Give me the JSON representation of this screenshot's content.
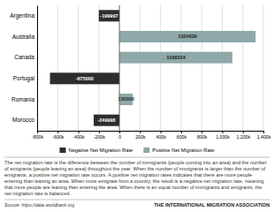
{
  "chart_data": {
    "type": "bar",
    "orientation": "horizontal",
    "title": "THE INTERNATIONAL MIGRATION ASSOCIATION",
    "annotations": [
      "The net migration rate is the difference between the number of immigrants (people coming into an area) and the number of emigrants (people leaving an area) throughout the year. When the number of immigrants is larger than the number of emigrants, a positive net migration rate occurs. A positive net migration rates indicates that there are more people entering than leaving an area. When more emigrate from a country, the result is a negative net migration rate, meaning that more people are leaving than entering the area. When there is an equal number of immigrants and emigrants, the net migration rate is balanced.",
      "Source: https://data.worldbank.org"
    ],
    "categories": [
      "Morocco",
      "Romania",
      "Portugal",
      "Canada",
      "Australia",
      "Argentina"
    ],
    "series": [
      {
        "name": "Negative Net Migration Rate",
        "color": "#2d2d2d",
        "values": [
          -249998,
          null,
          -675000,
          null,
          null,
          -199997
        ]
      },
      {
        "name": "Positive Net Migration Rate",
        "color": "#8fa8a8",
        "values": [
          null,
          130000,
          null,
          1098334,
          1324639,
          null
        ]
      }
    ],
    "xlim": [
      -800000,
      1400000
    ],
    "xticks": [
      {
        "value": -800000,
        "label": "-800k"
      },
      {
        "value": -600000,
        "label": "-600k"
      },
      {
        "value": -400000,
        "label": "-400k"
      },
      {
        "value": -200000,
        "label": "-200k"
      },
      0,
      {
        "value": 200000,
        "label": "200k"
      },
      {
        "value": 400000,
        "label": "400k"
      },
      {
        "value": 600000,
        "label": "600k"
      },
      {
        "value": 800000,
        "label": "800k"
      },
      {
        "value": 1000000,
        "label": "1,000k"
      },
      {
        "value": 1200000,
        "label": "1,200k"
      },
      {
        "value": 1400000,
        "label": "1,400k"
      }
    ],
    "grid": true,
    "legend": "bottom",
    "data_labels": true
  }
}
